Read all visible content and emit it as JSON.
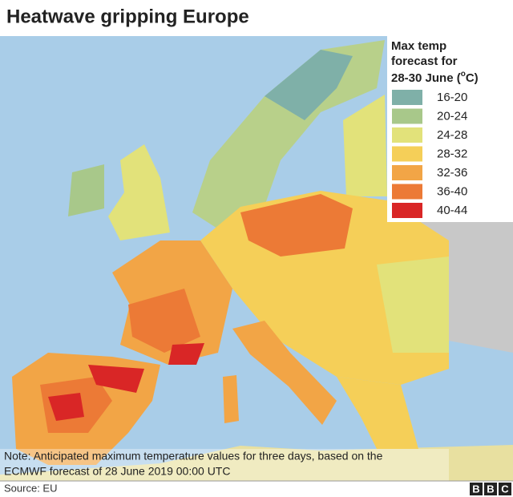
{
  "header": {
    "title": "Heatwave gripping Europe"
  },
  "legend": {
    "title_lines": [
      "Max temp",
      "forecast for"
    ],
    "title_date": "28-30 June (",
    "title_sup": "o",
    "title_end": "C)",
    "entries": [
      {
        "label": "16-20",
        "color": "#7fb0a8"
      },
      {
        "label": "20-24",
        "color": "#a8c88a"
      },
      {
        "label": "24-28",
        "color": "#e2e27a"
      },
      {
        "label": "28-32",
        "color": "#f5cf58"
      },
      {
        "label": "32-36",
        "color": "#f2a546"
      },
      {
        "label": "36-40",
        "color": "#ec7a36"
      },
      {
        "label": "40-44",
        "color": "#d92626"
      }
    ]
  },
  "note_lines": [
    "Note: Anticipated maximum temperature values for three days, based on the",
    "ECMWF forecast of 28 June 2019 00:00 UTC"
  ],
  "footer": {
    "source": "Source: EU",
    "logo": [
      "B",
      "B",
      "C"
    ]
  }
}
